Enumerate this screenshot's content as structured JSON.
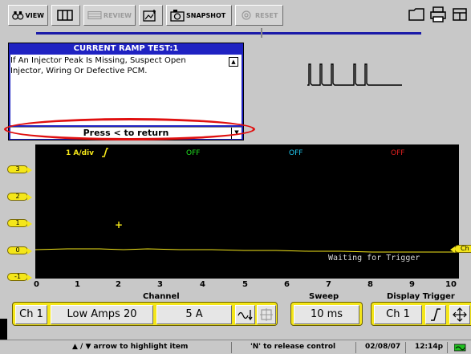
{
  "toolbar": {
    "view_label": "VIEW",
    "review_label": "REVIEW",
    "snapshot_label": "SNAPSHOT",
    "reset_label": "RESET"
  },
  "info_panel": {
    "title": "CURRENT RAMP TEST:1",
    "body_line1": "If An Injector Peak Is Missing, Suspect Open",
    "body_line2": "Injector, Wiring Or Defective PCM.",
    "return_label": "Press < to return"
  },
  "scope": {
    "scale_label": "1 A/div",
    "ch2_status": "OFF",
    "ch3_status": "OFF",
    "ch4_status": "OFF",
    "ch2_color": "#20e020",
    "ch3_color": "#20c8f0",
    "ch4_color": "#e02020",
    "trace_color": "#f4e61a",
    "waiting_text": "Waiting for Trigger",
    "y_markers": [
      "3",
      "2",
      "1",
      "0",
      "-1"
    ],
    "trigger_marker": "Ch"
  },
  "x_axis": {
    "ticks": [
      "0",
      "1",
      "2",
      "3",
      "4",
      "5",
      "6",
      "7",
      "8",
      "9",
      "10"
    ]
  },
  "sections": {
    "channel": "Channel",
    "sweep": "Sweep",
    "display_trigger": "Display Trigger"
  },
  "controls": {
    "channel_select": "Ch 1",
    "probe": "Low Amps 20",
    "scale": "5 A",
    "sweep": "10 ms",
    "trigger_channel": "Ch 1"
  },
  "status": {
    "hint": "▲ / ▼  arrow to highlight item",
    "release": "'N' to release control",
    "date": "02/08/07",
    "time": "12:14p"
  }
}
